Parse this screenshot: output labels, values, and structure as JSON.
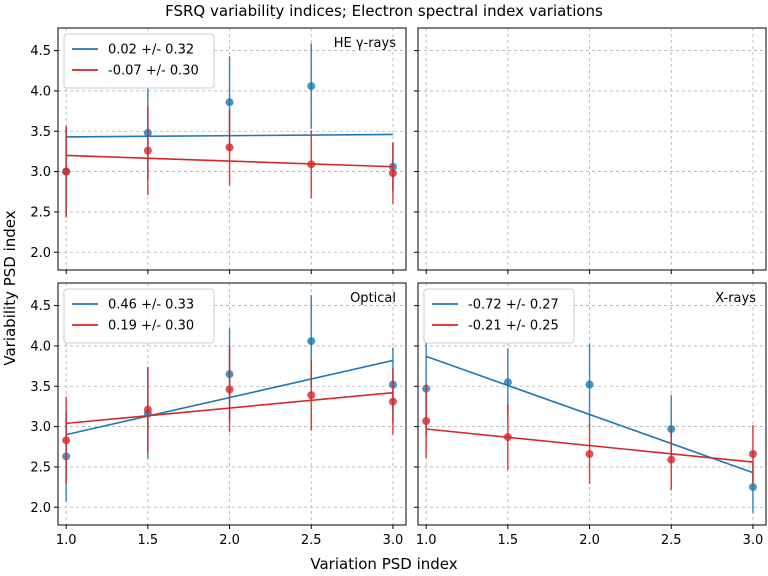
{
  "figure": {
    "title": "FSRQ variability indices; Electron spectral index variations",
    "xlabel": "Variation PSD index",
    "ylabel": "Variability PSD index"
  },
  "colors": {
    "blue": "#1f77b4",
    "red": "#d62728",
    "grid": "#b0b0b0"
  },
  "chart_data": [
    {
      "type": "scatter",
      "panel": "top-left",
      "label": "HE γ-rays",
      "xlim": [
        0.95,
        3.08
      ],
      "ylim": [
        1.78,
        4.78
      ],
      "xticks": [
        1.0,
        1.5,
        2.0,
        2.5,
        3.0
      ],
      "yticks": [
        2.0,
        2.5,
        3.0,
        3.5,
        4.0,
        4.5
      ],
      "show_xticklabels": false,
      "show_yticklabels": true,
      "legend_location": "upper-left",
      "series": [
        {
          "name": "0.02 +/- 0.32",
          "color": "#1f77b4",
          "x": [
            1.0,
            1.5,
            2.0,
            2.5,
            3.0
          ],
          "y": [
            3.0,
            3.48,
            3.86,
            4.06,
            3.06
          ],
          "err": [
            0.55,
            0.58,
            0.57,
            0.53,
            0.3
          ],
          "fit": {
            "x": [
              1.0,
              3.0
            ],
            "y": [
              3.43,
              3.46
            ]
          }
        },
        {
          "name": "-0.07 +/- 0.30",
          "color": "#d62728",
          "x": [
            1.0,
            1.5,
            2.0,
            2.5,
            3.0
          ],
          "y": [
            3.0,
            3.26,
            3.3,
            3.09,
            2.98
          ],
          "err": [
            0.57,
            0.55,
            0.47,
            0.42,
            0.38
          ],
          "fit": {
            "x": [
              1.0,
              3.0
            ],
            "y": [
              3.2,
              3.06
            ]
          }
        }
      ]
    },
    {
      "type": "scatter",
      "panel": "top-right",
      "label": "",
      "xlim": [
        0.95,
        3.08
      ],
      "ylim": [
        1.78,
        4.78
      ],
      "xticks": [
        1.0,
        1.5,
        2.0,
        2.5,
        3.0
      ],
      "yticks": [
        2.0,
        2.5,
        3.0,
        3.5,
        4.0,
        4.5
      ],
      "show_xticklabels": false,
      "show_yticklabels": false,
      "series": []
    },
    {
      "type": "scatter",
      "panel": "bottom-left",
      "label": "Optical",
      "xlim": [
        0.95,
        3.08
      ],
      "ylim": [
        1.78,
        4.78
      ],
      "xticks": [
        1.0,
        1.5,
        2.0,
        2.5,
        3.0
      ],
      "yticks": [
        2.0,
        2.5,
        3.0,
        3.5,
        4.0,
        4.5
      ],
      "show_xticklabels": true,
      "show_yticklabels": true,
      "legend_location": "upper-left",
      "series": [
        {
          "name": "0.46 +/- 0.33",
          "color": "#1f77b4",
          "x": [
            1.0,
            1.5,
            2.0,
            2.5,
            3.0
          ],
          "y": [
            2.63,
            3.16,
            3.65,
            4.06,
            3.52
          ],
          "err": [
            0.56,
            0.56,
            0.57,
            0.57,
            0.46
          ],
          "fit": {
            "x": [
              1.0,
              3.0
            ],
            "y": [
              2.9,
              3.82
            ]
          }
        },
        {
          "name": "0.19 +/- 0.30",
          "color": "#d62728",
          "x": [
            1.0,
            1.5,
            2.0,
            2.5,
            3.0
          ],
          "y": [
            2.83,
            3.21,
            3.46,
            3.39,
            3.31
          ],
          "err": [
            0.54,
            0.53,
            0.53,
            0.44,
            0.41
          ],
          "fit": {
            "x": [
              1.0,
              3.0
            ],
            "y": [
              3.04,
              3.42
            ]
          }
        }
      ]
    },
    {
      "type": "scatter",
      "panel": "bottom-right",
      "label": "X-rays",
      "xlim": [
        0.95,
        3.08
      ],
      "ylim": [
        1.78,
        4.78
      ],
      "xticks": [
        1.0,
        1.5,
        2.0,
        2.5,
        3.0
      ],
      "yticks": [
        2.0,
        2.5,
        3.0,
        3.5,
        4.0,
        4.5
      ],
      "show_xticklabels": true,
      "show_yticklabels": false,
      "legend_location": "upper-left",
      "series": [
        {
          "name": "-0.72 +/- 0.27",
          "color": "#1f77b4",
          "x": [
            1.0,
            1.5,
            2.0,
            2.5,
            3.0
          ],
          "y": [
            3.47,
            3.55,
            3.52,
            2.97,
            2.25
          ],
          "err": [
            0.58,
            0.42,
            0.51,
            0.42,
            0.32
          ],
          "fit": {
            "x": [
              1.0,
              3.0
            ],
            "y": [
              3.87,
              2.43
            ]
          }
        },
        {
          "name": "-0.21 +/- 0.25",
          "color": "#d62728",
          "x": [
            1.0,
            1.5,
            2.0,
            2.5,
            3.0
          ],
          "y": [
            3.07,
            2.87,
            2.66,
            2.59,
            2.66
          ],
          "err": [
            0.46,
            0.41,
            0.37,
            0.38,
            0.36
          ],
          "fit": {
            "x": [
              1.0,
              3.0
            ],
            "y": [
              2.97,
              2.56
            ]
          }
        }
      ]
    }
  ]
}
